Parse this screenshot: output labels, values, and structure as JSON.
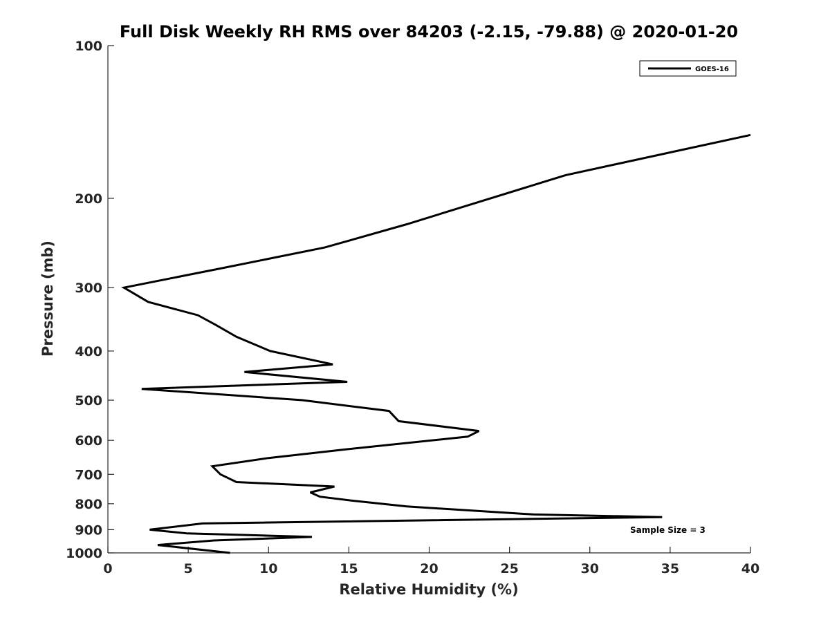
{
  "chart_data": {
    "type": "line",
    "title": "Full Disk Weekly RH RMS over 84203 (-2.15, -79.88) @ 2020-01-20",
    "xlabel": "Relative Humidity (%)",
    "ylabel": "Pressure (mb)",
    "xlim": [
      0,
      40
    ],
    "ylim": [
      100,
      1000
    ],
    "y_scale": "log",
    "y_reversed": true,
    "grid": false,
    "legend_position": "top-right",
    "x_ticks": [
      0,
      5,
      10,
      15,
      20,
      25,
      30,
      35,
      40
    ],
    "y_ticks": [
      100,
      200,
      300,
      400,
      500,
      600,
      700,
      800,
      900,
      1000
    ],
    "annotation": "Sample Size = 3",
    "series": [
      {
        "name": "GOES-16",
        "color": "#000000",
        "points": [
          {
            "x": 40.0,
            "y": 150
          },
          {
            "x": 28.5,
            "y": 180
          },
          {
            "x": 18.6,
            "y": 225
          },
          {
            "x": 13.5,
            "y": 250
          },
          {
            "x": 7.0,
            "y": 275
          },
          {
            "x": 1.0,
            "y": 300
          },
          {
            "x": 2.5,
            "y": 320
          },
          {
            "x": 5.6,
            "y": 340
          },
          {
            "x": 6.7,
            "y": 355
          },
          {
            "x": 8.0,
            "y": 375
          },
          {
            "x": 10.1,
            "y": 400
          },
          {
            "x": 14.0,
            "y": 425
          },
          {
            "x": 8.5,
            "y": 440
          },
          {
            "x": 14.9,
            "y": 460
          },
          {
            "x": 2.1,
            "y": 475
          },
          {
            "x": 12.1,
            "y": 500
          },
          {
            "x": 17.5,
            "y": 525
          },
          {
            "x": 18.1,
            "y": 550
          },
          {
            "x": 23.1,
            "y": 575
          },
          {
            "x": 22.4,
            "y": 590
          },
          {
            "x": 14.8,
            "y": 625
          },
          {
            "x": 10.0,
            "y": 650
          },
          {
            "x": 6.5,
            "y": 675
          },
          {
            "x": 7.0,
            "y": 700
          },
          {
            "x": 8.0,
            "y": 725
          },
          {
            "x": 14.1,
            "y": 740
          },
          {
            "x": 12.6,
            "y": 760
          },
          {
            "x": 13.2,
            "y": 775
          },
          {
            "x": 15.4,
            "y": 790
          },
          {
            "x": 18.6,
            "y": 810
          },
          {
            "x": 26.5,
            "y": 840
          },
          {
            "x": 34.5,
            "y": 850
          },
          {
            "x": 5.9,
            "y": 875
          },
          {
            "x": 2.6,
            "y": 900
          },
          {
            "x": 4.9,
            "y": 915
          },
          {
            "x": 12.7,
            "y": 930
          },
          {
            "x": 6.6,
            "y": 945
          },
          {
            "x": 3.1,
            "y": 965
          },
          {
            "x": 7.6,
            "y": 1000
          }
        ]
      }
    ]
  }
}
